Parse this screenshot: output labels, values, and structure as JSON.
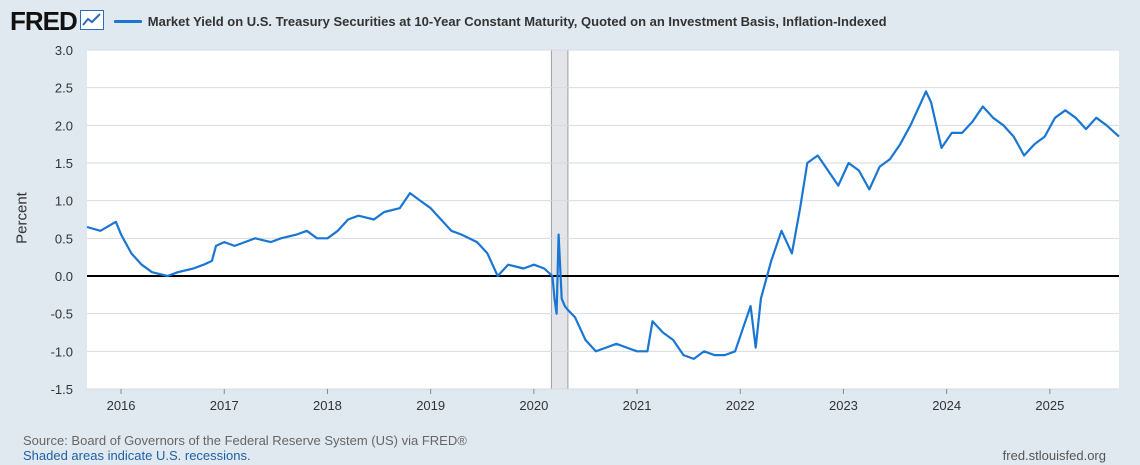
{
  "header": {
    "logo": "FRED",
    "logo_icon": "chart-trend-icon"
  },
  "chart_data": {
    "type": "line",
    "title": "Market Yield on U.S. Treasury Securities at 10-Year Constant Maturity, Quoted on an Investment Basis, Inflation-Indexed",
    "xlabel": "",
    "ylabel": "Percent",
    "xlim": [
      2015.67,
      2025.67
    ],
    "ylim": [
      -1.5,
      3.0
    ],
    "yticks": [
      "3.0",
      "2.5",
      "2.0",
      "1.5",
      "1.0",
      "0.5",
      "0.0",
      "-0.5",
      "-1.0",
      "-1.5"
    ],
    "xticks": [
      "2016",
      "2017",
      "2018",
      "2019",
      "2020",
      "2021",
      "2022",
      "2023",
      "2024",
      "2025"
    ],
    "grid": true,
    "zero_line": true,
    "recession_shading": [
      {
        "start": 2020.17,
        "end": 2020.33
      }
    ],
    "series": [
      {
        "name": "Market Yield on U.S. Treasury Securities at 10-Year Constant Maturity, Quoted on an Investment Basis, Inflation-Indexed",
        "color": "#1976d2",
        "x": [
          2015.67,
          2015.8,
          2015.95,
          2016.0,
          2016.1,
          2016.2,
          2016.3,
          2016.45,
          2016.55,
          2016.7,
          2016.8,
          2016.88,
          2016.92,
          2017.0,
          2017.1,
          2017.2,
          2017.3,
          2017.45,
          2017.55,
          2017.7,
          2017.8,
          2017.9,
          2018.0,
          2018.1,
          2018.2,
          2018.3,
          2018.45,
          2018.55,
          2018.7,
          2018.8,
          2018.9,
          2019.0,
          2019.1,
          2019.2,
          2019.3,
          2019.45,
          2019.55,
          2019.65,
          2019.75,
          2019.9,
          2020.0,
          2020.1,
          2020.18,
          2020.2,
          2020.22,
          2020.24,
          2020.27,
          2020.3,
          2020.33,
          2020.4,
          2020.5,
          2020.6,
          2020.7,
          2020.8,
          2020.9,
          2021.0,
          2021.1,
          2021.15,
          2021.25,
          2021.35,
          2021.45,
          2021.55,
          2021.65,
          2021.75,
          2021.85,
          2021.95,
          2022.05,
          2022.1,
          2022.15,
          2022.2,
          2022.3,
          2022.4,
          2022.5,
          2022.58,
          2022.65,
          2022.75,
          2022.85,
          2022.95,
          2023.05,
          2023.15,
          2023.25,
          2023.35,
          2023.45,
          2023.55,
          2023.65,
          2023.75,
          2023.8,
          2023.85,
          2023.9,
          2023.95,
          2024.05,
          2024.15,
          2024.25,
          2024.35,
          2024.45,
          2024.55,
          2024.65,
          2024.75,
          2024.85,
          2024.95,
          2025.05,
          2025.15,
          2025.25,
          2025.35,
          2025.45,
          2025.55,
          2025.67
        ],
        "values": [
          0.65,
          0.6,
          0.72,
          0.55,
          0.3,
          0.15,
          0.05,
          0.0,
          0.05,
          0.1,
          0.15,
          0.2,
          0.4,
          0.45,
          0.4,
          0.45,
          0.5,
          0.45,
          0.5,
          0.55,
          0.6,
          0.5,
          0.5,
          0.6,
          0.75,
          0.8,
          0.75,
          0.85,
          0.9,
          1.1,
          1.0,
          0.9,
          0.75,
          0.6,
          0.55,
          0.45,
          0.3,
          0.0,
          0.15,
          0.1,
          0.15,
          0.1,
          0.0,
          -0.3,
          -0.5,
          0.55,
          -0.3,
          -0.4,
          -0.45,
          -0.55,
          -0.85,
          -1.0,
          -0.95,
          -0.9,
          -0.95,
          -1.0,
          -1.0,
          -0.6,
          -0.75,
          -0.85,
          -1.05,
          -1.1,
          -1.0,
          -1.05,
          -1.05,
          -1.0,
          -0.6,
          -0.4,
          -0.95,
          -0.3,
          0.2,
          0.6,
          0.3,
          0.9,
          1.5,
          1.6,
          1.4,
          1.2,
          1.5,
          1.4,
          1.15,
          1.45,
          1.55,
          1.75,
          2.0,
          2.3,
          2.45,
          2.3,
          2.0,
          1.7,
          1.9,
          1.9,
          2.05,
          2.25,
          2.1,
          2.0,
          1.85,
          1.6,
          1.75,
          1.85,
          2.1,
          2.2,
          2.1,
          1.95,
          2.1,
          2.0,
          1.85
        ]
      }
    ]
  },
  "footer": {
    "source": "Source: Board of Governors of the Federal Reserve System (US) via FRED®",
    "recessions_note": "Shaded areas indicate U.S. recessions.",
    "site": "fred.stlouisfed.org"
  }
}
